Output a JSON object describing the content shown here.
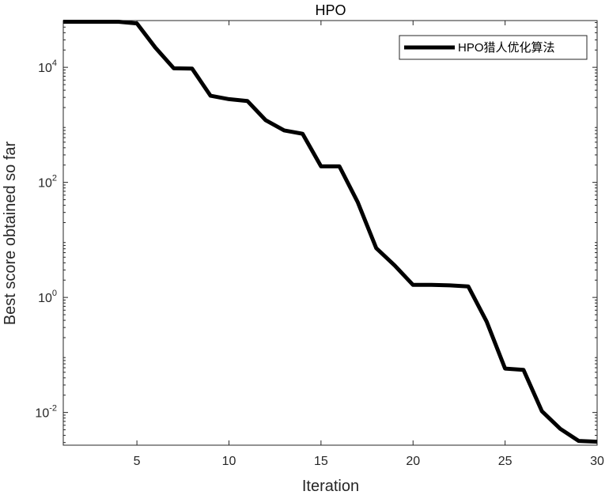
{
  "chart_data": {
    "type": "line",
    "title": "HPO",
    "xlabel": "Iteration",
    "ylabel": "Best score obtained so far",
    "xlim": [
      1,
      30
    ],
    "ylim": [
      0.0027,
      65000
    ],
    "yscale": "log",
    "grid": false,
    "legend_position": "top-right",
    "x_ticks": [
      5,
      10,
      15,
      20,
      25,
      30
    ],
    "x_tick_labels": [
      "5",
      "10",
      "15",
      "20",
      "25",
      "30"
    ],
    "y_ticks": [
      0.01,
      1,
      100,
      10000
    ],
    "y_tick_labels": [
      {
        "base": "10",
        "exp": "-2"
      },
      {
        "base": "10",
        "exp": "0"
      },
      {
        "base": "10",
        "exp": "2"
      },
      {
        "base": "10",
        "exp": "4"
      }
    ],
    "series": [
      {
        "name": "HPO猎人优化算法",
        "color": "#000000",
        "x": [
          1,
          2,
          3,
          4,
          5,
          6,
          7,
          8,
          9,
          10,
          11,
          12,
          13,
          14,
          15,
          16,
          17,
          18,
          19,
          20,
          21,
          22,
          23,
          24,
          25,
          26,
          27,
          28,
          29,
          30
        ],
        "y": [
          62000,
          62000,
          62000,
          62000,
          58000,
          22000,
          9600,
          9500,
          3200,
          2800,
          2600,
          1200,
          800,
          700,
          190,
          190,
          45,
          7.2,
          3.6,
          1.65,
          1.65,
          1.62,
          1.55,
          0.38,
          0.058,
          0.055,
          0.0105,
          0.0052,
          0.0032,
          0.0031
        ]
      }
    ]
  }
}
